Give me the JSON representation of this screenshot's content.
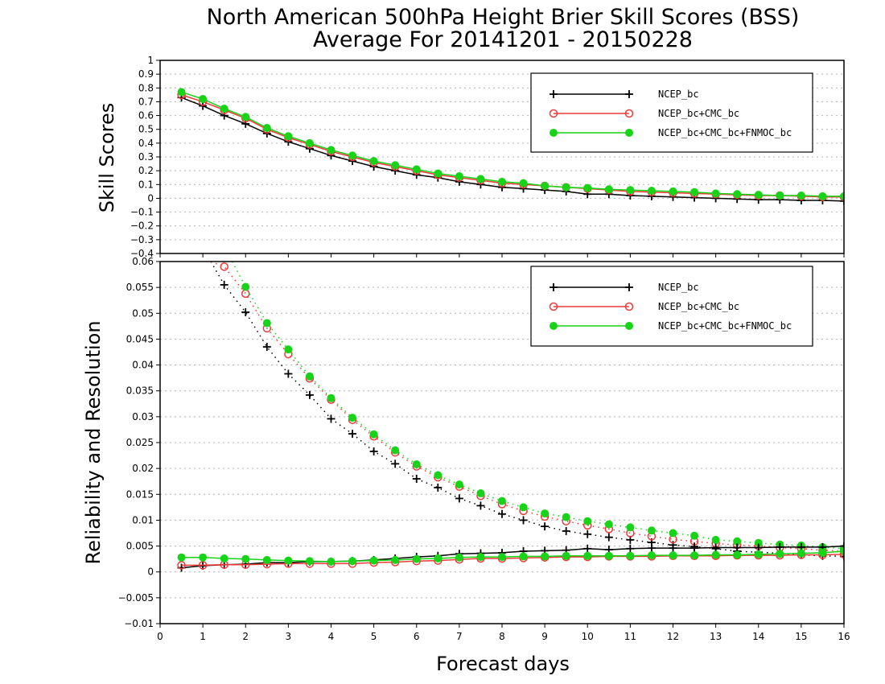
{
  "title_line1": "North American 500hPa Height Brier Skill Scores (BSS)",
  "title_line2": "Average For 20141201 - 20150228",
  "colors": {
    "NCEP_bc": "#000000",
    "NCEP_bc+CMC_bc": "#ee3a3a",
    "NCEP_bc+CMC_bc+FNMOC_bc": "#18d418"
  },
  "chart_data": [
    {
      "type": "line",
      "ylabel": "Skill Scores",
      "ylim": [
        -0.4,
        1
      ],
      "yticks": [
        "1",
        "0.9",
        "0.8",
        "0.7",
        "0.6",
        "0.5",
        "0.4",
        "0.3",
        "0.2",
        "0.1",
        "0",
        "−0.1",
        "−0.2",
        "−0.3",
        "−0.4"
      ],
      "xlim": [
        0,
        16
      ],
      "grid": true,
      "legend_position": "top-right",
      "x": [
        0.5,
        1,
        1.5,
        2,
        2.5,
        3,
        3.5,
        4,
        4.5,
        5,
        5.5,
        6,
        6.5,
        7,
        7.5,
        8,
        8.5,
        9,
        9.5,
        10,
        10.5,
        11,
        11.5,
        12,
        12.5,
        13,
        13.5,
        14,
        14.5,
        15,
        15.5,
        16
      ],
      "series": [
        {
          "name": "NCEP_bc",
          "marker": "plus",
          "values": [
            0.73,
            0.67,
            0.6,
            0.54,
            0.47,
            0.41,
            0.36,
            0.31,
            0.27,
            0.23,
            0.2,
            0.17,
            0.15,
            0.12,
            0.1,
            0.08,
            0.07,
            0.06,
            0.05,
            0.03,
            0.03,
            0.02,
            0.015,
            0.01,
            0.005,
            0,
            -0.005,
            -0.01,
            -0.01,
            -0.015,
            -0.015,
            -0.02
          ]
        },
        {
          "name": "NCEP_bc+CMC_bc",
          "marker": "circle",
          "values": [
            0.75,
            0.7,
            0.64,
            0.58,
            0.5,
            0.44,
            0.39,
            0.34,
            0.3,
            0.26,
            0.23,
            0.2,
            0.17,
            0.15,
            0.13,
            0.11,
            0.1,
            0.09,
            0.08,
            0.07,
            0.06,
            0.05,
            0.045,
            0.04,
            0.035,
            0.03,
            0.025,
            0.02,
            0.02,
            0.015,
            0.01,
            0.01
          ]
        },
        {
          "name": "NCEP_bc+CMC_bc+FNMOC_bc",
          "marker": "dot",
          "values": [
            0.77,
            0.72,
            0.65,
            0.59,
            0.51,
            0.45,
            0.4,
            0.35,
            0.31,
            0.27,
            0.24,
            0.21,
            0.18,
            0.16,
            0.14,
            0.12,
            0.11,
            0.09,
            0.08,
            0.075,
            0.065,
            0.06,
            0.055,
            0.05,
            0.045,
            0.035,
            0.03,
            0.025,
            0.02,
            0.02,
            0.015,
            0.015
          ]
        }
      ]
    },
    {
      "type": "line",
      "ylabel": "Reliability and Resolution",
      "xlabel": "Forecast days",
      "ylim": [
        -0.01,
        0.06
      ],
      "yticks": [
        "0.06",
        "0.055",
        "0.05",
        "0.045",
        "0.04",
        "0.035",
        "0.03",
        "0.025",
        "0.02",
        "0.015",
        "0.01",
        "0.005",
        "0",
        "−0.005",
        "−0.01"
      ],
      "xlim": [
        0,
        16
      ],
      "xticks": [
        "0",
        "1",
        "2",
        "3",
        "4",
        "5",
        "6",
        "7",
        "8",
        "9",
        "10",
        "11",
        "12",
        "13",
        "14",
        "15",
        "16"
      ],
      "grid": true,
      "legend_position": "top-right",
      "x": [
        0.5,
        1,
        1.5,
        2,
        2.5,
        3,
        3.5,
        4,
        4.5,
        5,
        5.5,
        6,
        6.5,
        7,
        7.5,
        8,
        8.5,
        9,
        9.5,
        10,
        10.5,
        11,
        11.5,
        12,
        12.5,
        13,
        13.5,
        14,
        14.5,
        15,
        15.5,
        16
      ],
      "series": [
        {
          "name": "NCEP_bc",
          "component": "resolution",
          "style": "dotted",
          "marker": "plus",
          "values": [
            null,
            null,
            0.0555,
            0.0502,
            0.0435,
            0.0383,
            0.0342,
            0.0296,
            0.0267,
            0.0233,
            0.0209,
            0.018,
            0.0163,
            0.0142,
            0.0128,
            0.0112,
            0.01,
            0.0088,
            0.0079,
            0.0073,
            0.0067,
            0.0062,
            0.0057,
            0.0052,
            0.0049,
            0.0045,
            0.004,
            0.0038,
            0.0036,
            0.0033,
            0.0031,
            0.003
          ]
        },
        {
          "name": "NCEP_bc+CMC_bc",
          "component": "resolution",
          "style": "dotted",
          "marker": "circle",
          "values": [
            null,
            null,
            0.059,
            0.0538,
            0.0471,
            0.0421,
            0.0374,
            0.0333,
            0.0294,
            0.0262,
            0.0231,
            0.0204,
            0.0183,
            0.0165,
            0.0147,
            0.0131,
            0.0118,
            0.0107,
            0.0098,
            0.009,
            0.0083,
            0.0075,
            0.0069,
            0.0063,
            0.0059,
            0.0055,
            0.0052,
            0.005,
            0.0047,
            0.0045,
            0.0042,
            0.004
          ]
        },
        {
          "name": "NCEP_bc+CMC_bc+FNMOC_bc",
          "component": "resolution",
          "style": "dotted",
          "marker": "dot",
          "values": [
            null,
            null,
            null,
            0.0551,
            0.0481,
            0.043,
            0.0378,
            0.0336,
            0.0298,
            0.0266,
            0.0235,
            0.0208,
            0.0187,
            0.0169,
            0.0152,
            0.0137,
            0.0125,
            0.0113,
            0.0106,
            0.0098,
            0.0092,
            0.0086,
            0.008,
            0.0075,
            0.007,
            0.0062,
            0.0059,
            0.0056,
            0.0053,
            0.0051,
            0.0048,
            0.0045
          ]
        },
        {
          "name": "NCEP_bc",
          "component": "reliability",
          "style": "solid",
          "marker": "plus",
          "values": [
            0.0008,
            0.0012,
            0.0014,
            0.0015,
            0.0018,
            0.0018,
            0.002,
            0.002,
            0.0021,
            0.0023,
            0.0026,
            0.0029,
            0.0031,
            0.0035,
            0.0036,
            0.0037,
            0.004,
            0.0041,
            0.0042,
            0.0045,
            0.0043,
            0.0045,
            0.0046,
            0.0046,
            0.0046,
            0.0047,
            0.0047,
            0.0047,
            0.0048,
            0.0048,
            0.0048,
            0.005
          ]
        },
        {
          "name": "NCEP_bc+CMC_bc",
          "component": "reliability",
          "style": "solid",
          "marker": "circle",
          "values": [
            0.0013,
            0.0013,
            0.0014,
            0.0014,
            0.0015,
            0.0016,
            0.0016,
            0.0016,
            0.0016,
            0.0018,
            0.0019,
            0.0021,
            0.0022,
            0.0024,
            0.0026,
            0.0026,
            0.0027,
            0.0028,
            0.0029,
            0.0029,
            0.003,
            0.003,
            0.003,
            0.0031,
            0.0031,
            0.0031,
            0.0032,
            0.0032,
            0.0032,
            0.0033,
            0.0033,
            0.0034
          ]
        },
        {
          "name": "NCEP_bc+CMC_bc+FNMOC_bc",
          "component": "reliability",
          "style": "solid",
          "marker": "dot",
          "values": [
            0.0028,
            0.0028,
            0.0026,
            0.0025,
            0.0023,
            0.0022,
            0.0021,
            0.002,
            0.0021,
            0.0022,
            0.0023,
            0.0025,
            0.0026,
            0.0028,
            0.0029,
            0.0029,
            0.003,
            0.003,
            0.0031,
            0.0031,
            0.0031,
            0.0031,
            0.0032,
            0.0032,
            0.0032,
            0.0033,
            0.0033,
            0.0034,
            0.0035,
            0.0036,
            0.0037,
            0.004
          ]
        }
      ]
    }
  ]
}
